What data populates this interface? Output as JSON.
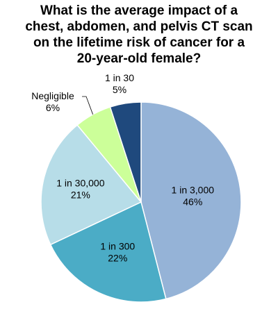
{
  "chart_data": {
    "type": "pie",
    "title_lines": [
      "What is the average impact of a",
      "chest, abdomen, and pelvis CT scan",
      "on the lifetime  risk of cancer for a",
      "20-year-old female?"
    ],
    "slices": [
      {
        "label": "1 in 3,000",
        "value": 46,
        "percent_label": "46%",
        "color": "#95b3d7"
      },
      {
        "label": "1 in 300",
        "value": 22,
        "percent_label": "22%",
        "color": "#4bacc6"
      },
      {
        "label": "1 in 30,000",
        "value": 21,
        "percent_label": "21%",
        "color": "#b7dde8"
      },
      {
        "label": "Negligible",
        "value": 6,
        "percent_label": "6%",
        "color": "#ccff99"
      },
      {
        "label": "1 in 30",
        "value": 5,
        "percent_label": "5%",
        "color": "#1f497d"
      }
    ],
    "start": "12 o'clock",
    "direction": "clockwise",
    "legend": "none"
  }
}
